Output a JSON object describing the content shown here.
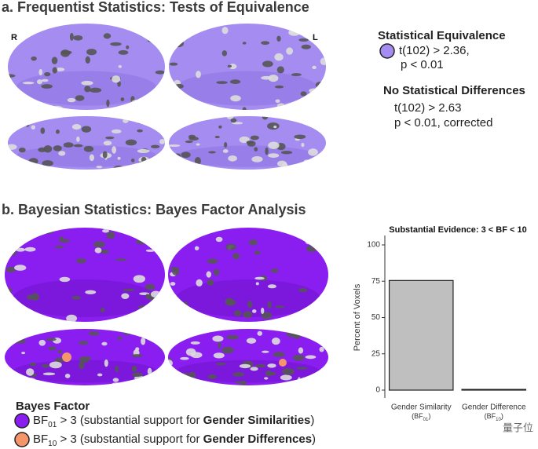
{
  "panel_a": {
    "title": "a. Frequentist Statistics: Tests of Equivalence",
    "hemisphere_labels": [
      "R",
      "L"
    ],
    "legend": [
      {
        "heading": "Statistical Equivalence",
        "lines": [
          "t(102) > 2.36,",
          "p < 0.01"
        ]
      },
      {
        "heading": "No Statistical Differences",
        "lines": [
          "t(102) > 2.63",
          "p < 0.01, corrected"
        ]
      }
    ]
  },
  "panel_b": {
    "title": "b. Bayesian Statistics: Bayes Factor Analysis",
    "legend": {
      "title": "Bayes Factor",
      "items": [
        {
          "symbol": "BF",
          "subscript": "01",
          "text": " > 3 (substantial support for ",
          "emphasis": "Gender Similarities",
          "end": ")"
        },
        {
          "symbol": "BF",
          "subscript": "10",
          "text": " > 3 (substantial support for ",
          "emphasis": "Gender Differences",
          "end": ")"
        }
      ]
    }
  },
  "chart_data": {
    "type": "bar",
    "title": "Substantial Evidence: 3 < BF < 10",
    "y_label": "Percent of Voxels",
    "categories": [
      "Gender Similarity",
      "Gender Difference"
    ],
    "category_notes": [
      {
        "symbol": "(BF",
        "subscript": "01",
        "end": ")"
      },
      {
        "symbol": "(BF",
        "subscript": "10",
        "end": ")"
      }
    ],
    "values": [
      75.5,
      0.5
    ],
    "color": "#bfbfbf",
    "ylim": [
      0,
      100
    ],
    "yticks": [
      0,
      25,
      50,
      75,
      100
    ]
  },
  "watermark": "量子位"
}
